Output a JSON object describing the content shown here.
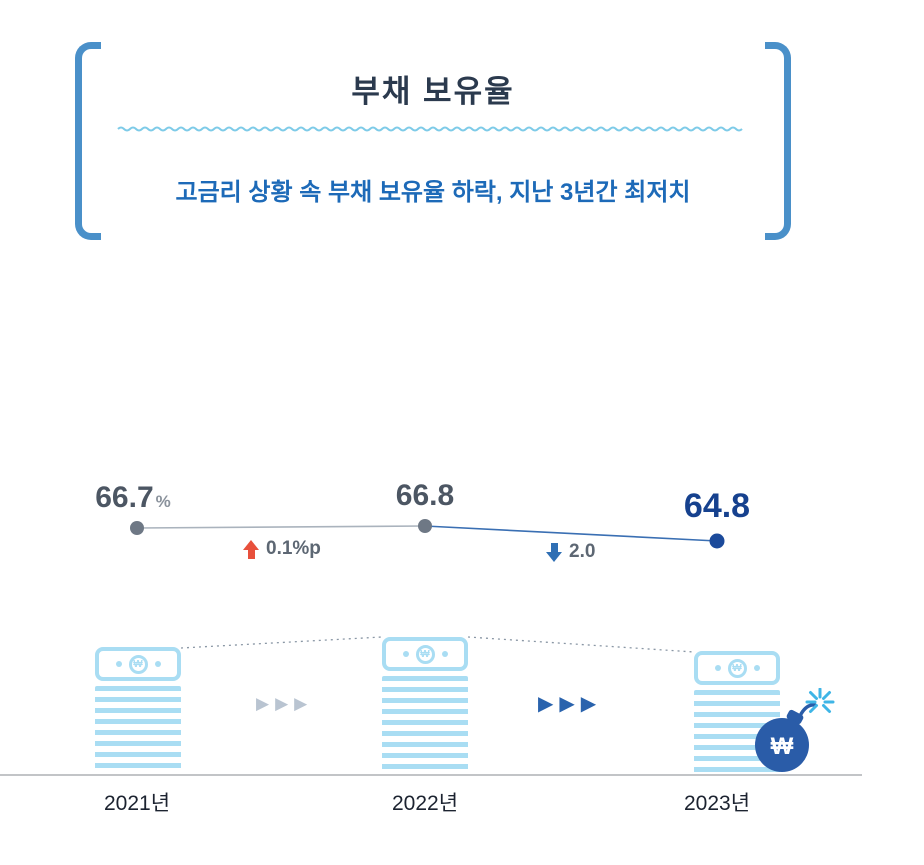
{
  "header": {
    "title": "부채 보유율",
    "subtitle": "고금리 상황 속 부채 보유율 하락, 지난 3년간 최저치"
  },
  "chart_data": {
    "type": "line",
    "title": "부채 보유율",
    "categories": [
      "2021년",
      "2022년",
      "2023년"
    ],
    "values": [
      66.7,
      66.8,
      64.8
    ],
    "unit": "%",
    "ylim": [
      60,
      70
    ],
    "grid": false,
    "legend_position": "none",
    "annotations": [
      {
        "segment": "2021년→2022년",
        "direction": "up",
        "label": "0.1%p"
      },
      {
        "segment": "2022년→2023년",
        "direction": "down",
        "label": "2.0"
      }
    ]
  },
  "labels": {
    "won": "₩",
    "triple_arrow": "▶▶▶"
  },
  "colors": {
    "bracket_blue": "#4a90c9",
    "wave_blue": "#7ecbe8",
    "subtitle_blue": "#1d6ab8",
    "title_navy": "#2b3a4e",
    "value_gray": "#4c5663",
    "highlight_blue": "#16418e",
    "line_gray": "#aab3bd",
    "line_blue": "#3a6fb3",
    "dot_gray": "#6e7885",
    "dot_blue": "#1b4a9b",
    "up_red": "#e8503c",
    "down_blue": "#2f6fb4",
    "light_blue": "#a9ddf3",
    "arrow_light": "#b9c4d1",
    "arrow_dark": "#2a63ad",
    "bomb_blue": "#2a5ca8",
    "spark_cyan": "#3fb5e6"
  }
}
